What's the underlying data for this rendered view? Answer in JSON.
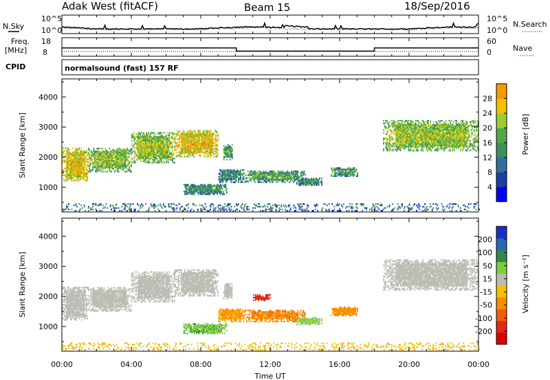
{
  "header": {
    "station": "Adak West (fitACF)",
    "beam": "Beam 15",
    "date": "18/Sep/2016"
  },
  "strips": {
    "nsky_label": "N.Sky",
    "nsearch_label": "N.Search",
    "freq_label_line1": "Freq.",
    "freq_label_line2": "[MHz]",
    "nave_label": "Nave",
    "cpid_label": "CPID",
    "cpid_text": "normalsound (fast) 157 RF",
    "noise_left_ticks": [
      "10^5",
      "10^0"
    ],
    "noise_right_ticks": [
      "10^5",
      "10^0"
    ],
    "freq_left_ticks": [
      "18",
      "8"
    ],
    "freq_right_ticks": [
      "60",
      "0"
    ]
  },
  "axes": {
    "ylabel": "Slant Range [km]",
    "xlabel": "Time UT",
    "yticks": [
      "4000",
      "3000",
      "2000",
      "1000"
    ],
    "xticks": [
      "00:00",
      "04:00",
      "08:00",
      "12:00",
      "16:00",
      "20:00",
      "00:00"
    ]
  },
  "colorbars": {
    "power_label": "Power [dB]",
    "power_ticks": [
      "28",
      "24",
      "20",
      "16",
      "12",
      "8",
      "4"
    ],
    "velocity_label": "Velocity [m s⁻¹]",
    "velocity_ticks": [
      "200",
      "100",
      "50",
      "15",
      "-15",
      "-50",
      "-100",
      "-200"
    ]
  },
  "colors": {
    "power": [
      "#0000ff",
      "#1c3fa8",
      "#2e6fa0",
      "#3c8f5a",
      "#4fa84a",
      "#9ccc2e",
      "#f2c200",
      "#f59a00",
      "#f25a00",
      "#e21b0a"
    ],
    "velocity": [
      "#1a2fc8",
      "#2e66b0",
      "#2f8a4e",
      "#7fcf3a",
      "#bdbdb5",
      "#f5c000",
      "#f59000",
      "#f06000",
      "#e52a10",
      "#e00000"
    ]
  },
  "chart_data": [
    {
      "type": "heatmap",
      "title": "Power",
      "xlabel": "Time UT",
      "ylabel": "Slant Range [km]",
      "xlim": [
        0,
        24
      ],
      "ylim": [
        180,
        4600
      ],
      "colorbar": {
        "label": "Power [dB]",
        "range": [
          0,
          32
        ]
      },
      "regions": [
        {
          "t0": 0.0,
          "t1": 1.5,
          "r0": 1200,
          "r1": 2300,
          "value": 18
        },
        {
          "t0": 1.5,
          "t1": 4.0,
          "r0": 1500,
          "r1": 2300,
          "value": 13
        },
        {
          "t0": 4.0,
          "t1": 6.5,
          "r0": 1800,
          "r1": 2800,
          "value": 14
        },
        {
          "t0": 6.5,
          "t1": 9.0,
          "r0": 2000,
          "r1": 2900,
          "value": 18
        },
        {
          "t0": 9.3,
          "t1": 9.8,
          "r0": 1900,
          "r1": 2400,
          "value": 10
        },
        {
          "t0": 7.0,
          "t1": 9.5,
          "r0": 750,
          "r1": 1100,
          "value": 9
        },
        {
          "t0": 9.0,
          "t1": 10.5,
          "r0": 1150,
          "r1": 1600,
          "value": 8
        },
        {
          "t0": 10.5,
          "t1": 14.0,
          "r0": 1150,
          "r1": 1550,
          "value": 10
        },
        {
          "t0": 13.5,
          "t1": 15.0,
          "r0": 1050,
          "r1": 1300,
          "value": 8
        },
        {
          "t0": 15.5,
          "t1": 17.0,
          "r0": 1350,
          "r1": 1650,
          "value": 9
        },
        {
          "t0": 18.5,
          "t1": 24.0,
          "r0": 2200,
          "r1": 3200,
          "value": 14
        },
        {
          "t0": 0.0,
          "t1": 24.0,
          "r0": 200,
          "r1": 450,
          "value": 6
        }
      ]
    },
    {
      "type": "heatmap",
      "title": "Velocity",
      "xlabel": "Time UT",
      "ylabel": "Slant Range [km]",
      "xlim": [
        0,
        24
      ],
      "ylim": [
        180,
        4600
      ],
      "colorbar": {
        "label": "Velocity [m s⁻¹]",
        "range": [
          -250,
          250
        ]
      },
      "regions": [
        {
          "t0": 0.0,
          "t1": 1.5,
          "r0": 1200,
          "r1": 2300,
          "value": 0
        },
        {
          "t0": 1.5,
          "t1": 4.0,
          "r0": 1500,
          "r1": 2300,
          "value": 0
        },
        {
          "t0": 4.0,
          "t1": 6.5,
          "r0": 1800,
          "r1": 2800,
          "value": 0
        },
        {
          "t0": 6.5,
          "t1": 9.0,
          "r0": 2000,
          "r1": 2900,
          "value": 0
        },
        {
          "t0": 9.3,
          "t1": 9.8,
          "r0": 1900,
          "r1": 2400,
          "value": 0
        },
        {
          "t0": 7.0,
          "t1": 9.5,
          "r0": 750,
          "r1": 1100,
          "value": 40
        },
        {
          "t0": 9.0,
          "t1": 10.5,
          "r0": 1150,
          "r1": 1600,
          "value": -60
        },
        {
          "t0": 10.5,
          "t1": 14.0,
          "r0": 1150,
          "r1": 1550,
          "value": -90
        },
        {
          "t0": 11.0,
          "t1": 12.0,
          "r0": 1850,
          "r1": 2050,
          "value": -230
        },
        {
          "t0": 13.5,
          "t1": 15.0,
          "r0": 1050,
          "r1": 1300,
          "value": 30
        },
        {
          "t0": 15.5,
          "t1": 17.0,
          "r0": 1350,
          "r1": 1650,
          "value": -70
        },
        {
          "t0": 18.5,
          "t1": 24.0,
          "r0": 2200,
          "r1": 3200,
          "value": 0
        },
        {
          "t0": 0.0,
          "t1": 24.0,
          "r0": 200,
          "r1": 450,
          "value": -30
        }
      ]
    }
  ]
}
